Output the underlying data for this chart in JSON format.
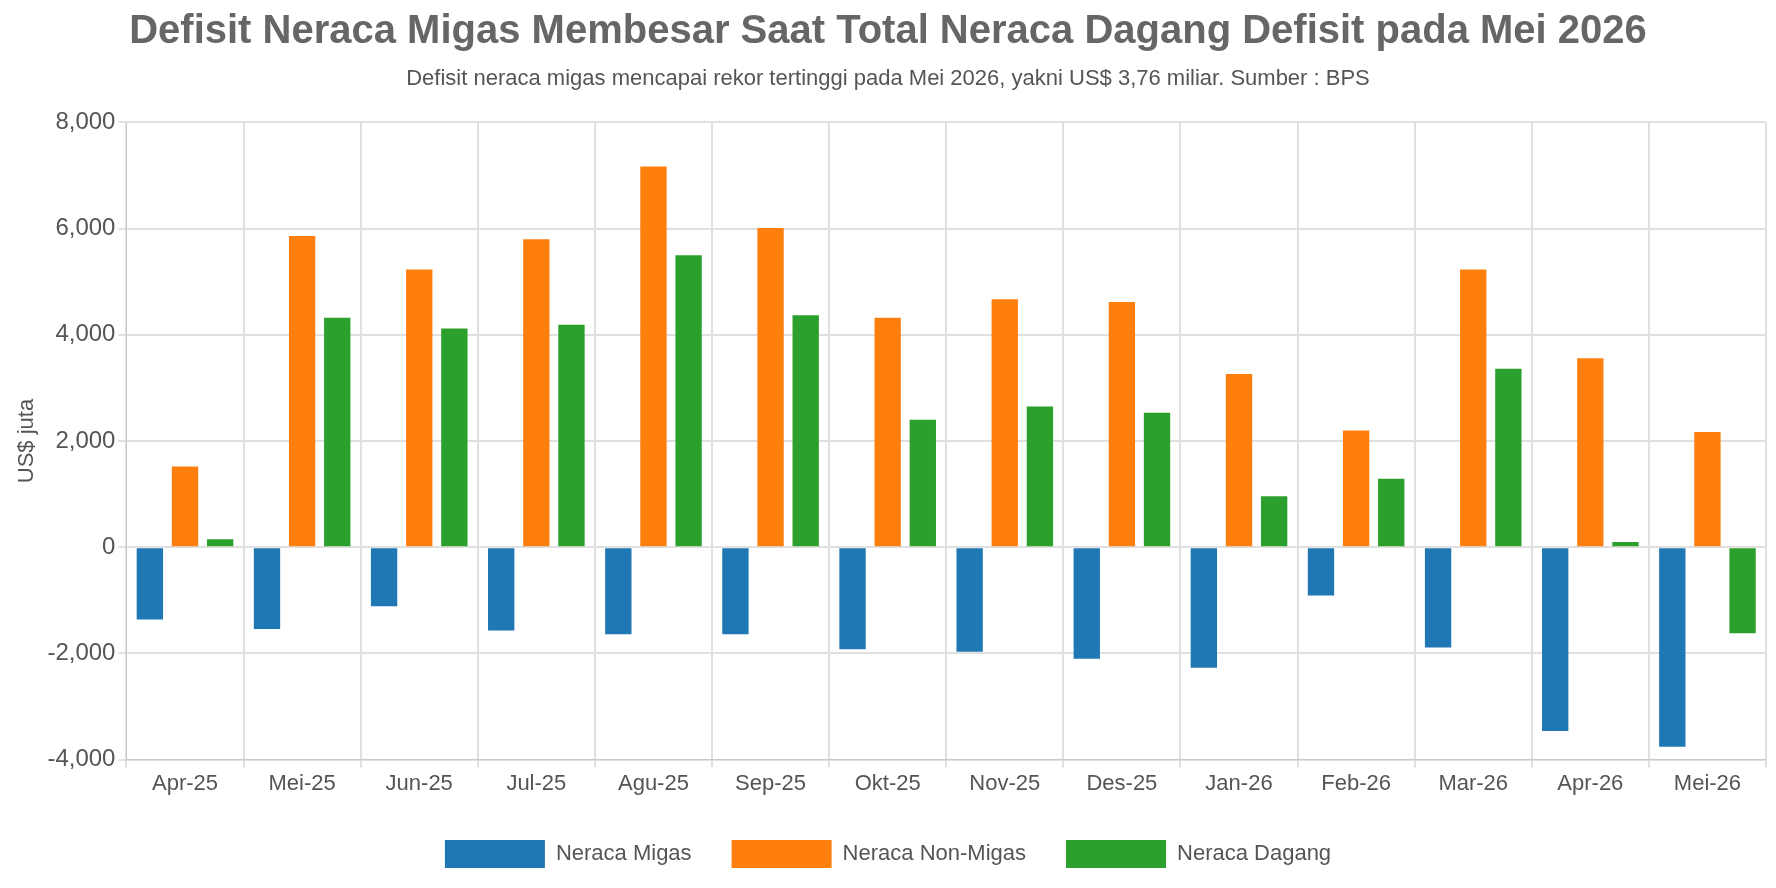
{
  "chart_data": {
    "type": "bar",
    "title": "Defisit Neraca Migas Membesar Saat Total Neraca Dagang Defisit pada Mei 2026",
    "subtitle": "Defisit neraca migas mencapai rekor tertinggi pada Mei 2026, yakni US$ 3,76 miliar. Sumber : BPS",
    "ylabel": "US$ juta",
    "categories": [
      "Apr-25",
      "Mei-25",
      "Jun-25",
      "Jul-25",
      "Agu-25",
      "Sep-25",
      "Okt-25",
      "Nov-25",
      "Des-25",
      "Jan-26",
      "Feb-26",
      "Mar-26",
      "Apr-26",
      "Mei-26"
    ],
    "series": [
      {
        "name": "Neraca Migas",
        "color": "#1f77b4",
        "values": [
          -1360,
          -1540,
          -1110,
          -1570,
          -1640,
          -1640,
          -1920,
          -1970,
          -2100,
          -2270,
          -910,
          -1890,
          -3460,
          -3760
        ]
      },
      {
        "name": "Neraca Non-Migas",
        "color": "#ff7f0e",
        "values": [
          1520,
          5860,
          5230,
          5800,
          7170,
          6010,
          4320,
          4670,
          4620,
          3260,
          2200,
          5230,
          3560,
          2170
        ]
      },
      {
        "name": "Neraca Dagang",
        "color": "#2ca02c",
        "values": [
          150,
          4320,
          4120,
          4190,
          5500,
          4370,
          2400,
          2650,
          2530,
          960,
          1290,
          3360,
          100,
          -1620
        ]
      }
    ],
    "ylim": [
      -4000,
      8000
    ],
    "yticks": [
      {
        "value": -4000,
        "label": "-4,000"
      },
      {
        "value": -2000,
        "label": "-2,000"
      },
      0,
      {
        "value": 2000,
        "label": "2,000"
      },
      {
        "value": 4000,
        "label": "4,000"
      },
      {
        "value": 6000,
        "label": "6,000"
      },
      {
        "value": 8000,
        "label": "8,000"
      }
    ],
    "grid": true,
    "legend": "bottom"
  }
}
